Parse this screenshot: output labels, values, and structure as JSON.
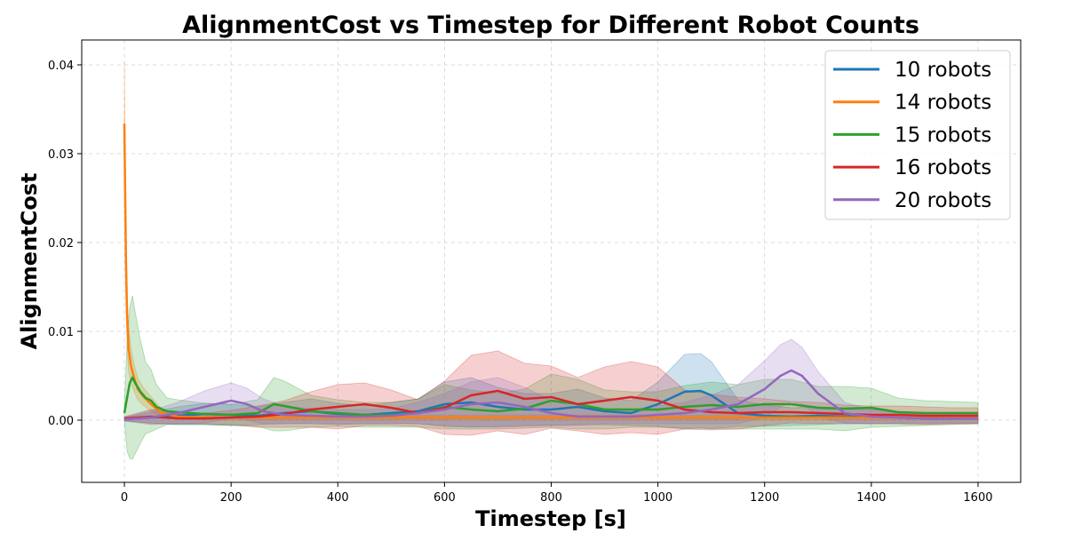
{
  "chart_data": {
    "type": "line",
    "title": "AlignmentCost vs Timestep for Different Robot Counts",
    "xlabel": "Timestep [s]",
    "ylabel": "AlignmentCost",
    "xlim": [
      -80,
      1680
    ],
    "ylim": [
      -0.007,
      0.0428
    ],
    "xticks": [
      0,
      200,
      400,
      600,
      800,
      1000,
      1200,
      1400,
      1600
    ],
    "yticks": [
      0.0,
      0.01,
      0.02,
      0.03,
      0.04
    ],
    "ytick_labels": [
      "0.00",
      "0.01",
      "0.02",
      "0.03",
      "0.04"
    ],
    "grid": true,
    "legend_position": "top-right",
    "series": [
      {
        "name": "10 robots",
        "color": "#1f77b4",
        "x": [
          0,
          50,
          100,
          150,
          200,
          250,
          300,
          350,
          400,
          450,
          500,
          550,
          600,
          650,
          700,
          750,
          800,
          850,
          900,
          950,
          1000,
          1050,
          1080,
          1100,
          1150,
          1200,
          1250,
          1300,
          1350,
          1400,
          1450,
          1500,
          1550,
          1600
        ],
        "y": [
          0.0001,
          0.0003,
          0.0005,
          0.0007,
          0.0006,
          0.0005,
          0.0008,
          0.001,
          0.0007,
          0.0006,
          0.0008,
          0.001,
          0.0018,
          0.002,
          0.0015,
          0.0012,
          0.0012,
          0.0015,
          0.001,
          0.0008,
          0.0018,
          0.0032,
          0.0033,
          0.0028,
          0.0008,
          0.0005,
          0.0004,
          0.0005,
          0.0004,
          0.0004,
          0.0003,
          0.0002,
          0.0002,
          0.0002
        ],
        "band": [
          0.0002,
          0.0006,
          0.001,
          0.0012,
          0.0012,
          0.001,
          0.0012,
          0.0014,
          0.0012,
          0.001,
          0.0012,
          0.0014,
          0.0025,
          0.0028,
          0.0022,
          0.0018,
          0.0018,
          0.002,
          0.0015,
          0.0014,
          0.0025,
          0.0042,
          0.0042,
          0.0038,
          0.0015,
          0.0012,
          0.001,
          0.001,
          0.0008,
          0.0008,
          0.0007,
          0.0006,
          0.0006,
          0.0006
        ]
      },
      {
        "name": "14 robots",
        "color": "#ff7f0e",
        "x": [
          0,
          1,
          3,
          5,
          8,
          12,
          18,
          25,
          35,
          50,
          70,
          100,
          150,
          200,
          300,
          400,
          500,
          600,
          700,
          800,
          900,
          1000,
          1100,
          1200,
          1300,
          1400,
          1500,
          1600
        ],
        "y": [
          0.0334,
          0.028,
          0.018,
          0.012,
          0.008,
          0.0062,
          0.0048,
          0.0035,
          0.0027,
          0.0018,
          0.0008,
          0.0004,
          0.0003,
          0.0003,
          0.0003,
          0.0003,
          0.0003,
          0.0003,
          0.0003,
          0.0003,
          0.0003,
          0.0003,
          0.0003,
          0.0003,
          0.0003,
          0.0003,
          0.0003,
          0.0003
        ],
        "band": [
          0.007,
          0.006,
          0.0045,
          0.0035,
          0.0025,
          0.002,
          0.0015,
          0.0012,
          0.001,
          0.0008,
          0.0005,
          0.0003,
          0.0003,
          0.0003,
          0.0003,
          0.0003,
          0.0003,
          0.0003,
          0.0003,
          0.0003,
          0.0003,
          0.0003,
          0.0003,
          0.0003,
          0.0003,
          0.0003,
          0.0003,
          0.0003
        ]
      },
      {
        "name": "15 robots",
        "color": "#2ca02c",
        "x": [
          0,
          5,
          10,
          15,
          20,
          30,
          40,
          50,
          60,
          80,
          100,
          150,
          200,
          250,
          280,
          300,
          350,
          400,
          450,
          500,
          550,
          600,
          650,
          700,
          750,
          800,
          850,
          900,
          950,
          1000,
          1050,
          1100,
          1150,
          1200,
          1250,
          1300,
          1350,
          1400,
          1450,
          1500,
          1550,
          1600
        ],
        "y": [
          0.0008,
          0.0025,
          0.0042,
          0.0048,
          0.0042,
          0.0032,
          0.0025,
          0.0022,
          0.0015,
          0.001,
          0.0009,
          0.0007,
          0.0006,
          0.0008,
          0.0018,
          0.0016,
          0.001,
          0.0008,
          0.0006,
          0.0006,
          0.0008,
          0.0015,
          0.0012,
          0.001,
          0.0013,
          0.0022,
          0.0018,
          0.0012,
          0.0012,
          0.0012,
          0.0015,
          0.0017,
          0.0015,
          0.0018,
          0.0018,
          0.0014,
          0.0013,
          0.0014,
          0.0009,
          0.0008,
          0.0008,
          0.0008
        ],
        "band": [
          0.0008,
          0.006,
          0.0085,
          0.0092,
          0.008,
          0.0058,
          0.004,
          0.0035,
          0.0025,
          0.0015,
          0.0014,
          0.0012,
          0.0012,
          0.0015,
          0.003,
          0.0028,
          0.0018,
          0.0015,
          0.0014,
          0.0014,
          0.0016,
          0.0025,
          0.0022,
          0.002,
          0.0022,
          0.003,
          0.0028,
          0.0022,
          0.002,
          0.002,
          0.0024,
          0.0026,
          0.0025,
          0.0028,
          0.0028,
          0.0024,
          0.0025,
          0.0022,
          0.0016,
          0.0014,
          0.0013,
          0.0012
        ]
      },
      {
        "name": "16 robots",
        "color": "#d62728",
        "x": [
          0,
          50,
          100,
          150,
          200,
          250,
          300,
          350,
          400,
          450,
          500,
          550,
          600,
          650,
          700,
          750,
          800,
          850,
          900,
          950,
          1000,
          1050,
          1100,
          1150,
          1200,
          1250,
          1300,
          1350,
          1400,
          1450,
          1500,
          1550,
          1600
        ],
        "y": [
          0.0002,
          0.0004,
          0.0002,
          0.0002,
          0.0003,
          0.0004,
          0.0007,
          0.0012,
          0.0015,
          0.0018,
          0.0014,
          0.0008,
          0.0014,
          0.0028,
          0.0033,
          0.0024,
          0.0026,
          0.0018,
          0.0022,
          0.0026,
          0.0022,
          0.0012,
          0.0009,
          0.0008,
          0.0009,
          0.0009,
          0.0008,
          0.0007,
          0.0006,
          0.0006,
          0.0005,
          0.0005,
          0.0005
        ],
        "band": [
          0.0002,
          0.0008,
          0.0006,
          0.0006,
          0.0008,
          0.0012,
          0.0015,
          0.002,
          0.0025,
          0.0024,
          0.002,
          0.0015,
          0.003,
          0.0045,
          0.0045,
          0.004,
          0.0035,
          0.003,
          0.0038,
          0.004,
          0.0038,
          0.0022,
          0.002,
          0.0018,
          0.0015,
          0.0012,
          0.0012,
          0.001,
          0.001,
          0.001,
          0.001,
          0.0009,
          0.0009
        ]
      },
      {
        "name": "20 robots",
        "color": "#9467bd",
        "x": [
          0,
          50,
          100,
          150,
          200,
          230,
          260,
          300,
          350,
          400,
          450,
          500,
          550,
          600,
          650,
          700,
          750,
          800,
          850,
          900,
          950,
          1000,
          1050,
          1100,
          1150,
          1200,
          1230,
          1250,
          1270,
          1300,
          1350,
          1400,
          1450,
          1500,
          1550,
          1600
        ],
        "y": [
          0.0001,
          0.0003,
          0.0008,
          0.0015,
          0.0022,
          0.0018,
          0.001,
          0.0006,
          0.0005,
          0.0004,
          0.0004,
          0.0005,
          0.0008,
          0.0012,
          0.0018,
          0.002,
          0.0015,
          0.0008,
          0.0004,
          0.0004,
          0.0004,
          0.0006,
          0.0008,
          0.0012,
          0.0018,
          0.0035,
          0.005,
          0.0056,
          0.005,
          0.003,
          0.0008,
          0.0004,
          0.0003,
          0.0002,
          0.0002,
          0.0002
        ],
        "band": [
          0.0002,
          0.0008,
          0.0012,
          0.0018,
          0.002,
          0.0018,
          0.0014,
          0.001,
          0.0008,
          0.0008,
          0.0008,
          0.0008,
          0.0012,
          0.0018,
          0.0025,
          0.0028,
          0.0022,
          0.0014,
          0.001,
          0.0008,
          0.0008,
          0.001,
          0.0012,
          0.0016,
          0.0022,
          0.0032,
          0.0035,
          0.0035,
          0.0032,
          0.0025,
          0.0012,
          0.0008,
          0.0006,
          0.0005,
          0.0005,
          0.0005
        ]
      }
    ]
  }
}
